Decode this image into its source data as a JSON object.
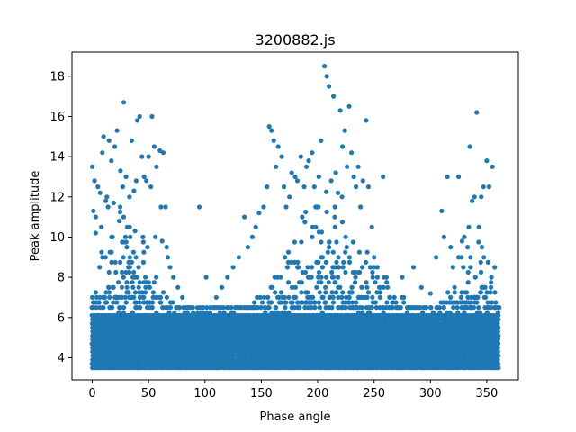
{
  "chart_data": {
    "type": "scatter",
    "title": "3200882.js",
    "xlabel": "Phase angle",
    "ylabel": "Peak amplitude",
    "xlim": [
      -18,
      378
    ],
    "ylim": [
      2.9,
      19.2
    ],
    "x_ticks": [
      0,
      50,
      100,
      150,
      200,
      250,
      300,
      350
    ],
    "y_ticks": [
      4,
      6,
      8,
      10,
      12,
      14,
      16,
      18
    ],
    "marker_color": "#1f77b4",
    "grid": false,
    "legend": "none",
    "dense_band": {
      "x_range": [
        0,
        360
      ],
      "y_range": [
        3.5,
        6.2
      ],
      "note": "dense uniform band of points at every phase angle"
    },
    "series": [
      {
        "values_xy": [
          [
            0,
            13.5
          ],
          [
            1,
            11.3
          ],
          [
            2,
            12.8
          ],
          [
            3,
            11.0
          ],
          [
            5,
            12.5
          ],
          [
            7,
            12.2
          ],
          [
            9,
            14.2
          ],
          [
            10,
            15.0
          ],
          [
            12,
            11.8
          ],
          [
            13,
            12.0
          ],
          [
            14,
            11.5
          ],
          [
            15,
            14.8
          ],
          [
            17,
            13.8
          ],
          [
            19,
            11.7
          ],
          [
            20,
            14.5
          ],
          [
            22,
            15.3
          ],
          [
            25,
            13.3
          ],
          [
            27,
            12.5
          ],
          [
            28,
            16.7
          ],
          [
            30,
            13.0
          ],
          [
            33,
            12.0
          ],
          [
            35,
            14.8
          ],
          [
            37,
            12.3
          ],
          [
            39,
            12.8
          ],
          [
            40,
            15.8
          ],
          [
            42,
            16.0
          ],
          [
            44,
            14.0
          ],
          [
            46,
            13.0
          ],
          [
            48,
            12.8
          ],
          [
            50,
            14.0
          ],
          [
            52,
            12.5
          ],
          [
            53,
            16.0
          ],
          [
            55,
            14.5
          ],
          [
            57,
            13.5
          ],
          [
            60,
            14.3
          ],
          [
            61,
            11.5
          ],
          [
            63,
            14.2
          ],
          [
            65,
            11.5
          ],
          [
            3,
            10.2
          ],
          [
            8,
            10.5
          ],
          [
            18,
            10.0
          ],
          [
            24,
            10.8
          ],
          [
            31,
            10.5
          ],
          [
            38,
            10.3
          ],
          [
            45,
            10.0
          ],
          [
            49,
            9.5
          ],
          [
            56,
            10.0
          ],
          [
            62,
            9.8
          ],
          [
            66,
            9.5
          ],
          [
            67,
            9.0
          ],
          [
            69,
            8.5
          ],
          [
            72,
            8.0
          ],
          [
            76,
            7.5
          ],
          [
            80,
            7.0
          ],
          [
            85,
            6.5
          ],
          [
            95,
            11.5
          ],
          [
            101,
            8.0
          ],
          [
            110,
            7.0
          ],
          [
            115,
            7.5
          ],
          [
            120,
            8.0
          ],
          [
            125,
            8.5
          ],
          [
            130,
            9.0
          ],
          [
            135,
            11.0
          ],
          [
            138,
            9.5
          ],
          [
            142,
            10.0
          ],
          [
            145,
            10.5
          ],
          [
            148,
            11.2
          ],
          [
            152,
            11.5
          ],
          [
            155,
            12.5
          ],
          [
            157,
            15.5
          ],
          [
            159,
            15.3
          ],
          [
            161,
            14.8
          ],
          [
            163,
            13.5
          ],
          [
            165,
            14.5
          ],
          [
            168,
            14.0
          ],
          [
            170,
            12.5
          ],
          [
            172,
            11.5
          ],
          [
            175,
            12.0
          ],
          [
            177,
            13.2
          ],
          [
            180,
            13.0
          ],
          [
            182,
            12.8
          ],
          [
            185,
            14.0
          ],
          [
            188,
            12.5
          ],
          [
            190,
            13.5
          ],
          [
            192,
            13.8
          ],
          [
            195,
            14.2
          ],
          [
            197,
            12.5
          ],
          [
            199,
            11.5
          ],
          [
            201,
            13.0
          ],
          [
            203,
            14.8
          ],
          [
            206,
            18.5
          ],
          [
            208,
            18.0
          ],
          [
            210,
            17.5
          ],
          [
            212,
            12.8
          ],
          [
            214,
            17.0
          ],
          [
            216,
            13.2
          ],
          [
            218,
            12.2
          ],
          [
            220,
            16.3
          ],
          [
            222,
            14.5
          ],
          [
            224,
            15.3
          ],
          [
            226,
            13.5
          ],
          [
            228,
            16.5
          ],
          [
            230,
            14.2
          ],
          [
            232,
            13.0
          ],
          [
            234,
            12.5
          ],
          [
            236,
            13.5
          ],
          [
            238,
            11.5
          ],
          [
            240,
            12.8
          ],
          [
            243,
            15.8
          ],
          [
            245,
            12.5
          ],
          [
            248,
            10.5
          ],
          [
            250,
            9.0
          ],
          [
            253,
            8.0
          ],
          [
            258,
            13.0
          ],
          [
            262,
            7.5
          ],
          [
            268,
            7.0
          ],
          [
            275,
            8.0
          ],
          [
            285,
            8.5
          ],
          [
            292,
            7.5
          ],
          [
            300,
            7.2
          ],
          [
            305,
            9.0
          ],
          [
            310,
            11.3
          ],
          [
            312,
            10.0
          ],
          [
            315,
            13.0
          ],
          [
            318,
            9.5
          ],
          [
            320,
            8.5
          ],
          [
            325,
            13.0
          ],
          [
            328,
            9.8
          ],
          [
            330,
            10.0
          ],
          [
            333,
            9.5
          ],
          [
            335,
            14.5
          ],
          [
            337,
            11.8
          ],
          [
            339,
            12.0
          ],
          [
            341,
            16.2
          ],
          [
            343,
            10.5
          ],
          [
            345,
            12.0
          ],
          [
            347,
            12.5
          ],
          [
            350,
            13.8
          ],
          [
            352,
            12.5
          ],
          [
            355,
            13.5
          ],
          [
            357,
            8.5
          ]
        ]
      }
    ]
  }
}
